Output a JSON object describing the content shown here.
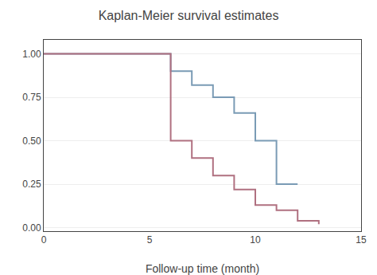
{
  "chart_data": {
    "type": "line",
    "title": "Kaplan-Meier survival estimates",
    "xlabel": "Follow-up time (month)",
    "xlim": [
      0,
      15
    ],
    "ylim": [
      -0.02,
      1.08
    ],
    "xticks": [
      0,
      5,
      10,
      15
    ],
    "yticks": [
      {
        "value": 0.0,
        "label": "0.00"
      },
      0.25,
      {
        "value": 0.5,
        "label": "0.50"
      },
      0.75,
      {
        "value": 1.0,
        "label": "1.00"
      }
    ],
    "grid": true,
    "series": [
      {
        "color": "#7a9bb5",
        "x": [
          0,
          6,
          6,
          7,
          7,
          8,
          8,
          9,
          9,
          10,
          10,
          11,
          11,
          12,
          12
        ],
        "values": [
          1.0,
          1.0,
          0.9,
          0.9,
          0.82,
          0.82,
          0.75,
          0.75,
          0.66,
          0.66,
          0.5,
          0.5,
          0.25,
          0.25,
          0.25
        ]
      },
      {
        "color": "#b07080",
        "x": [
          0,
          6,
          6,
          7,
          7,
          8,
          8,
          9,
          9,
          10,
          10,
          11,
          11,
          12,
          12,
          13,
          13
        ],
        "values": [
          1.0,
          1.0,
          0.5,
          0.5,
          0.4,
          0.4,
          0.3,
          0.3,
          0.22,
          0.22,
          0.13,
          0.13,
          0.1,
          0.1,
          0.04,
          0.04,
          0.02
        ]
      }
    ]
  }
}
